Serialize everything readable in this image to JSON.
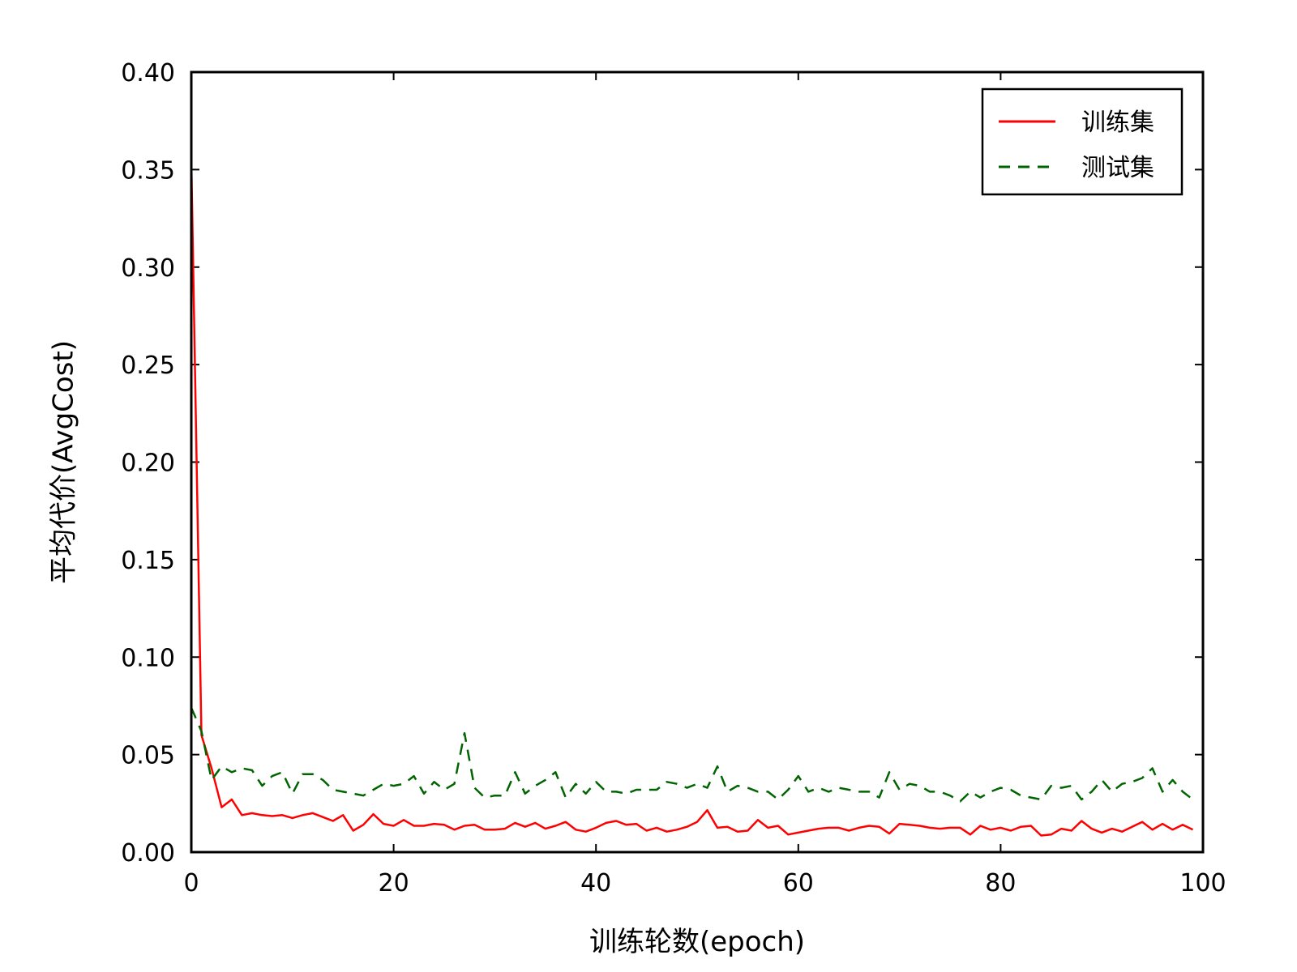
{
  "chart_data": {
    "type": "line",
    "xlabel": "训练轮数(epoch)",
    "ylabel": "平均代价(AvgCost)",
    "xlim": [
      0,
      100
    ],
    "ylim": [
      0,
      0.4
    ],
    "x_ticks": [
      0,
      20,
      40,
      60,
      80,
      100
    ],
    "x_tick_labels": [
      "0",
      "20",
      "40",
      "60",
      "80",
      "100"
    ],
    "y_ticks": [
      0,
      0.05,
      0.1,
      0.15,
      0.2,
      0.25,
      0.3,
      0.35,
      0.4
    ],
    "y_tick_labels": [
      "0.00",
      "0.05",
      "0.10",
      "0.15",
      "0.20",
      "0.25",
      "0.30",
      "0.35",
      "0.40"
    ],
    "grid": false,
    "legend_position": "top-right",
    "series": [
      {
        "name": "训练集",
        "color": "#ff0000",
        "style": "solid",
        "x": [
          0,
          1,
          2,
          3,
          4,
          5,
          6,
          7,
          8,
          9,
          10,
          11,
          12,
          13,
          14,
          15,
          16,
          17,
          18,
          19,
          20,
          21,
          22,
          23,
          24,
          25,
          26,
          27,
          28,
          29,
          30,
          31,
          32,
          33,
          34,
          35,
          36,
          37,
          38,
          39,
          40,
          41,
          42,
          43,
          44,
          45,
          46,
          47,
          48,
          49,
          50,
          51,
          52,
          53,
          54,
          55,
          56,
          57,
          58,
          59,
          60,
          61,
          62,
          63,
          64,
          65,
          66,
          67,
          68,
          69,
          70,
          71,
          72,
          73,
          74,
          75,
          76,
          77,
          78,
          79,
          80,
          81,
          82,
          83,
          84,
          85,
          86,
          87,
          88,
          89,
          90,
          91,
          92,
          93,
          94,
          95,
          96,
          97,
          98,
          99
        ],
        "y": [
          0.355,
          0.06,
          0.043,
          0.023,
          0.027,
          0.019,
          0.02,
          0.019,
          0.0185,
          0.019,
          0.0175,
          0.019,
          0.02,
          0.018,
          0.016,
          0.019,
          0.011,
          0.014,
          0.0195,
          0.0145,
          0.0135,
          0.0165,
          0.0135,
          0.0135,
          0.0145,
          0.014,
          0.0115,
          0.0135,
          0.014,
          0.0115,
          0.0115,
          0.012,
          0.015,
          0.013,
          0.015,
          0.012,
          0.0135,
          0.0155,
          0.0115,
          0.0105,
          0.0125,
          0.015,
          0.016,
          0.014,
          0.0145,
          0.011,
          0.0125,
          0.0105,
          0.0115,
          0.013,
          0.0155,
          0.0215,
          0.0125,
          0.013,
          0.0105,
          0.011,
          0.0165,
          0.0125,
          0.0135,
          0.009,
          0.01,
          0.011,
          0.012,
          0.0125,
          0.0125,
          0.011,
          0.0125,
          0.0135,
          0.013,
          0.0095,
          0.0145,
          0.014,
          0.0135,
          0.0125,
          0.012,
          0.0125,
          0.0125,
          0.009,
          0.0135,
          0.0115,
          0.0125,
          0.011,
          0.013,
          0.0135,
          0.0085,
          0.009,
          0.012,
          0.011,
          0.016,
          0.012,
          0.01,
          0.012,
          0.0105,
          0.013,
          0.0155,
          0.0115,
          0.0145,
          0.0115,
          0.014,
          0.0115
        ]
      },
      {
        "name": "测试集",
        "color": "#006400",
        "style": "dashed",
        "x": [
          0,
          1,
          2,
          3,
          4,
          5,
          6,
          7,
          8,
          9,
          10,
          11,
          12,
          13,
          14,
          15,
          16,
          17,
          18,
          19,
          20,
          21,
          22,
          23,
          24,
          25,
          26,
          27,
          28,
          29,
          30,
          31,
          32,
          33,
          34,
          35,
          36,
          37,
          38,
          39,
          40,
          41,
          42,
          43,
          44,
          45,
          46,
          47,
          48,
          49,
          50,
          51,
          52,
          53,
          54,
          55,
          56,
          57,
          58,
          59,
          60,
          61,
          62,
          63,
          64,
          65,
          66,
          67,
          68,
          69,
          70,
          71,
          72,
          73,
          74,
          75,
          76,
          77,
          78,
          79,
          80,
          81,
          82,
          83,
          84,
          85,
          86,
          87,
          88,
          89,
          90,
          91,
          92,
          93,
          94,
          95,
          96,
          97,
          98,
          99
        ],
        "y": [
          0.074,
          0.062,
          0.037,
          0.044,
          0.041,
          0.043,
          0.042,
          0.034,
          0.039,
          0.041,
          0.03,
          0.04,
          0.04,
          0.037,
          0.032,
          0.031,
          0.03,
          0.029,
          0.032,
          0.035,
          0.034,
          0.035,
          0.039,
          0.03,
          0.036,
          0.032,
          0.035,
          0.061,
          0.033,
          0.028,
          0.029,
          0.029,
          0.041,
          0.03,
          0.034,
          0.037,
          0.041,
          0.028,
          0.035,
          0.03,
          0.036,
          0.031,
          0.031,
          0.03,
          0.032,
          0.032,
          0.032,
          0.036,
          0.035,
          0.033,
          0.035,
          0.033,
          0.044,
          0.031,
          0.034,
          0.033,
          0.031,
          0.031,
          0.027,
          0.032,
          0.039,
          0.031,
          0.033,
          0.031,
          0.033,
          0.032,
          0.031,
          0.031,
          0.028,
          0.041,
          0.032,
          0.035,
          0.034,
          0.031,
          0.031,
          0.029,
          0.026,
          0.031,
          0.028,
          0.031,
          0.033,
          0.032,
          0.029,
          0.028,
          0.027,
          0.034,
          0.033,
          0.034,
          0.027,
          0.031,
          0.037,
          0.031,
          0.035,
          0.036,
          0.038,
          0.043,
          0.031,
          0.037,
          0.031,
          0.027
        ]
      }
    ]
  }
}
